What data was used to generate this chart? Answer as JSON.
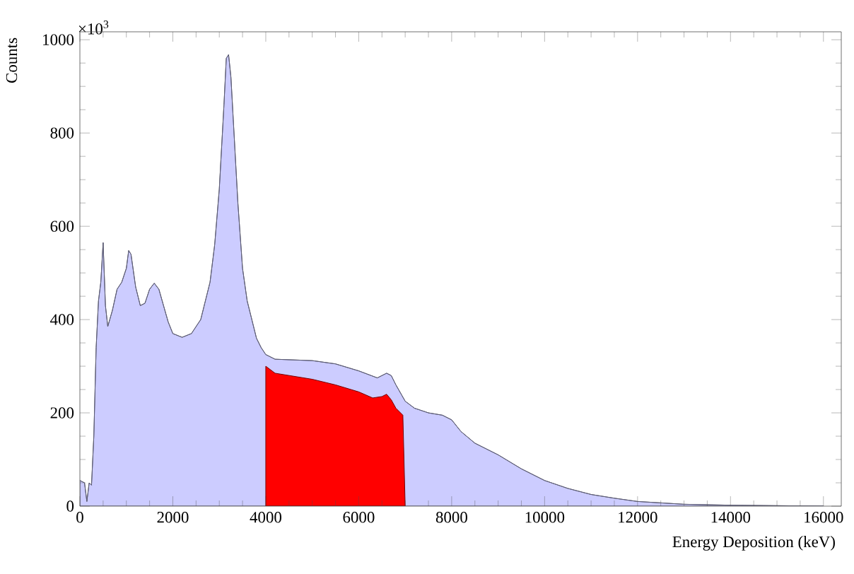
{
  "chart_data": {
    "type": "area",
    "xlabel": "Energy Deposition (keV)",
    "ylabel": "Counts",
    "annotations": [
      "×10$^{3}$"
    ],
    "xlim": [
      0,
      16384
    ],
    "ylim": [
      0,
      1017
    ],
    "xticks": [
      0,
      2000,
      4000,
      6000,
      8000,
      10000,
      12000,
      14000,
      16000
    ],
    "yticks": [
      0,
      200,
      400,
      600,
      800,
      1000
    ],
    "grid": false,
    "series": [
      {
        "color": "#ccccff",
        "x": [
          0,
          100,
          150,
          200,
          250,
          300,
          350,
          400,
          450,
          500,
          550,
          600,
          700,
          800,
          900,
          1000,
          1050,
          1100,
          1200,
          1300,
          1400,
          1500,
          1600,
          1700,
          1800,
          1900,
          2000,
          2200,
          2400,
          2600,
          2800,
          2900,
          3000,
          3100,
          3150,
          3200,
          3250,
          3300,
          3400,
          3500,
          3600,
          3700,
          3800,
          3900,
          4000,
          4200,
          5000,
          5500,
          6000,
          6400,
          6600,
          6700,
          6800,
          7000,
          7200,
          7500,
          7800,
          8000,
          8200,
          8500,
          9000,
          9500,
          10000,
          10500,
          11000,
          11500,
          12000,
          13000,
          14000,
          15000,
          16000
        ],
        "values": [
          55,
          50,
          10,
          50,
          45,
          150,
          340,
          440,
          480,
          565,
          430,
          385,
          420,
          465,
          480,
          510,
          548,
          540,
          470,
          430,
          435,
          465,
          478,
          465,
          430,
          395,
          370,
          362,
          370,
          400,
          480,
          560,
          680,
          860,
          960,
          968,
          920,
          830,
          650,
          510,
          440,
          400,
          360,
          340,
          325,
          315,
          312,
          305,
          290,
          275,
          285,
          280,
          260,
          225,
          210,
          200,
          195,
          185,
          160,
          135,
          110,
          80,
          55,
          38,
          25,
          17,
          10,
          4,
          2,
          1,
          0
        ]
      },
      {
        "color": "#ff0000",
        "x": [
          4000,
          4200,
          5000,
          5500,
          6000,
          6300,
          6500,
          6600,
          6700,
          6800,
          6950,
          7000
        ],
        "values": [
          300,
          285,
          272,
          260,
          245,
          232,
          235,
          240,
          228,
          210,
          195,
          0
        ]
      }
    ]
  }
}
